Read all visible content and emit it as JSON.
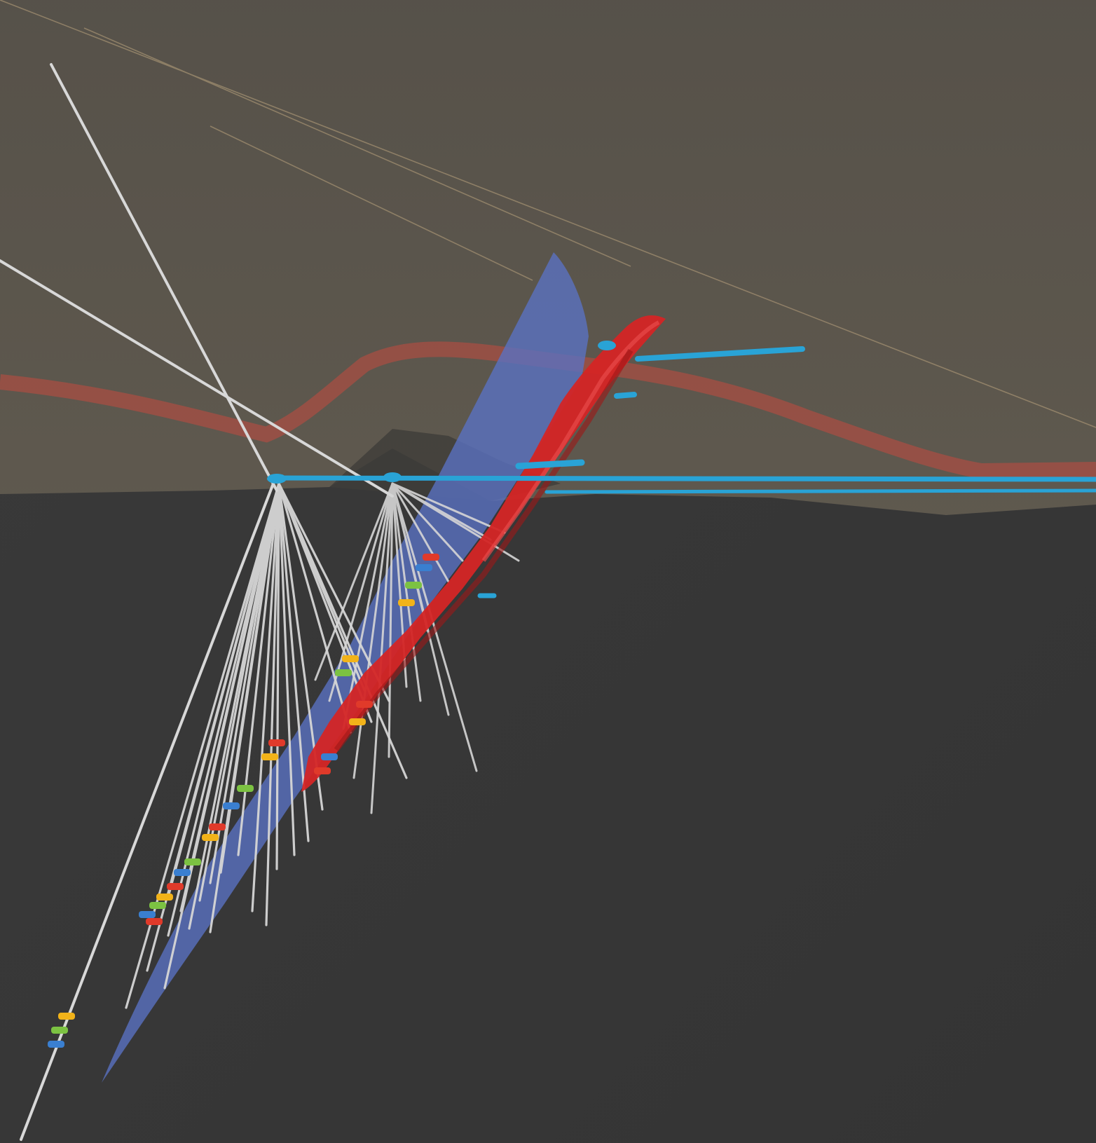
{
  "view": {
    "type": "3d-drillhole-model",
    "text_labels": []
  },
  "colors": {
    "surface": "#5a554b",
    "background": "#3b3b3b",
    "drillhole": "#d8d8d8",
    "ore_body": "#d42525",
    "fault_plane": "#5a72c4",
    "workings": "#29a3d6",
    "faint_ore_trace": "#c24a40"
  },
  "legend_items": [],
  "interval_marker_colors": [
    "#e03a2a",
    "#f2b319",
    "#7cc242",
    "#3a7fd0"
  ]
}
